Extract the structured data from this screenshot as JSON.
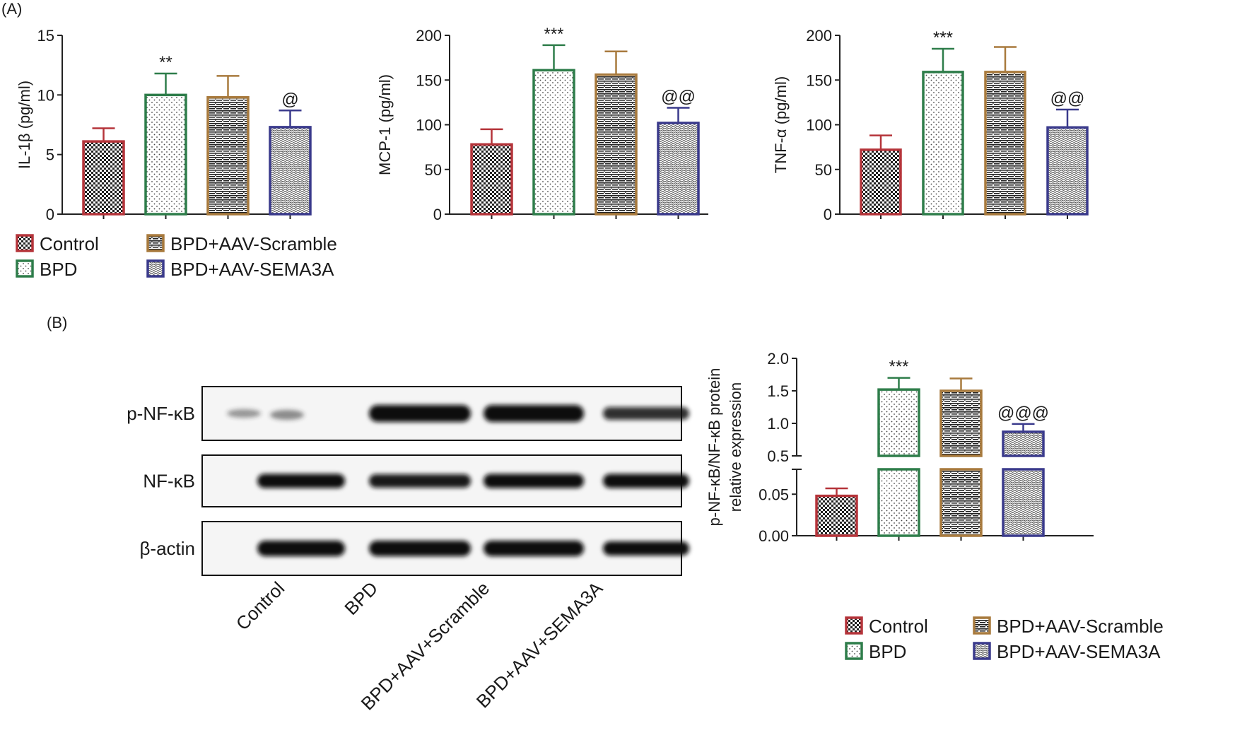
{
  "panels": {
    "a": "(A)",
    "b": "(B)"
  },
  "group_colors": {
    "Control": "#b5343a",
    "BPD": "#2e7d4a",
    "BPD+AAV-Scramble": "#a87a3d",
    "BPD+AAV-SEMA3A": "#3a3a8c"
  },
  "legend": [
    "Control",
    "BPD",
    "BPD+AAV-Scramble",
    "BPD+AAV-SEMA3A"
  ],
  "chart_data": [
    {
      "type": "bar",
      "ylabel": "IL-1β (pg/ml)",
      "categories": [
        "Control",
        "BPD",
        "BPD+AAV-Scramble",
        "BPD+AAV-SEMA3A"
      ],
      "values": [
        6.1,
        10.0,
        9.8,
        7.3
      ],
      "errors": [
        1.1,
        1.8,
        1.8,
        1.4
      ],
      "annotations": [
        "",
        "**",
        "",
        "@"
      ],
      "ylim": [
        0,
        15
      ],
      "yticks": [
        "0",
        "5",
        "10",
        "15"
      ]
    },
    {
      "type": "bar",
      "ylabel": "MCP-1 (pg/ml)",
      "categories": [
        "Control",
        "BPD",
        "BPD+AAV-Scramble",
        "BPD+AAV-SEMA3A"
      ],
      "values": [
        78,
        161,
        156,
        102
      ],
      "errors": [
        17,
        28,
        26,
        17
      ],
      "annotations": [
        "",
        "***",
        "",
        "@@"
      ],
      "ylim": [
        0,
        200
      ],
      "yticks": [
        "0",
        "50",
        "100",
        "150",
        "200"
      ]
    },
    {
      "type": "bar",
      "ylabel": "TNF-α (pg/ml)",
      "categories": [
        "Control",
        "BPD",
        "BPD+AAV-Scramble",
        "BPD+AAV-SEMA3A"
      ],
      "values": [
        72,
        159,
        159,
        97
      ],
      "errors": [
        16,
        26,
        28,
        20
      ],
      "annotations": [
        "",
        "***",
        "",
        "@@"
      ],
      "ylim": [
        0,
        200
      ],
      "yticks": [
        "0",
        "50",
        "100",
        "150",
        "200"
      ]
    },
    {
      "type": "bar",
      "ylabel_lines": [
        "p-NF-κB/NF-κB protein",
        "relative expression"
      ],
      "categories": [
        "Control",
        "BPD",
        "BPD+AAV-Scramble",
        "BPD+AAV-SEMA3A"
      ],
      "values": [
        0.048,
        1.52,
        1.5,
        0.87
      ],
      "errors": [
        0.009,
        0.18,
        0.19,
        0.12
      ],
      "annotations": [
        "",
        "***",
        "",
        "@@@"
      ],
      "axis_break": true,
      "ylim_lower": [
        0,
        0.08
      ],
      "ylim_upper": [
        0.5,
        2.0
      ],
      "yticks_lower": [
        "0.00",
        "0.05"
      ],
      "yticks_upper": [
        "0.5",
        "1.0",
        "1.5",
        "2.0"
      ]
    }
  ],
  "western_blot": {
    "rows": [
      "p-NF-κB",
      "NF-κB",
      "β-actin"
    ],
    "lanes": [
      "Control",
      "BPD",
      "BPD+AAV+Scramble",
      "BPD+AAV+SEMA3A"
    ]
  }
}
